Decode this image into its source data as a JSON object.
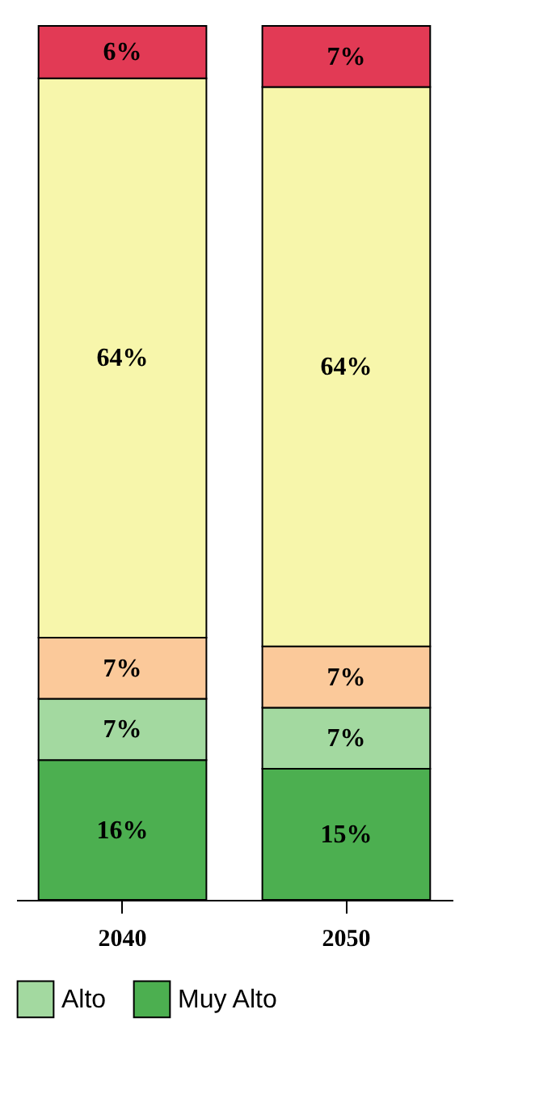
{
  "chart_data": {
    "type": "bar",
    "stacked": true,
    "legend": "bottom",
    "categories": [
      "2040",
      "2050"
    ],
    "series": [
      {
        "name": "Muy Alto",
        "color": "#4caf50",
        "values": [
          16,
          15
        ],
        "value_labels": [
          "16%",
          "15%"
        ]
      },
      {
        "name": "Alto",
        "color": "#a3d9a0",
        "values": [
          7,
          7
        ],
        "value_labels": [
          "7%",
          "7%"
        ]
      },
      {
        "color": "#fbc99a",
        "values": [
          7,
          7
        ],
        "value_labels": [
          "7%",
          "7%"
        ]
      },
      {
        "color": "#f7f6ab",
        "values": [
          64,
          64
        ],
        "value_labels": [
          "64%",
          "64%"
        ]
      },
      {
        "color": "#e23a55",
        "values": [
          6,
          7
        ],
        "value_labels": [
          "6%",
          "7%"
        ]
      }
    ]
  }
}
